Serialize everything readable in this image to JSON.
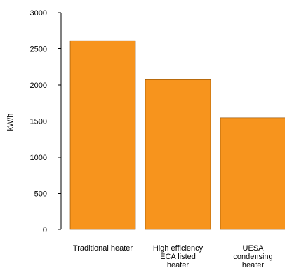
{
  "chart_data": {
    "type": "bar",
    "categories": [
      [
        "Traditional heater"
      ],
      [
        "High efficiency",
        "ECA listed",
        "heater"
      ],
      [
        "UESA",
        "condensing",
        "heater"
      ]
    ],
    "values": [
      2610,
      2075,
      1545
    ],
    "title": "",
    "xlabel": "",
    "ylabel": "kW/h",
    "ylim": [
      0,
      3000
    ],
    "yticks": [
      0,
      500,
      1000,
      1500,
      2000,
      2500,
      3000
    ],
    "grid": false,
    "legend": "none",
    "bar_color": "#f7941d",
    "axis_color": "#000000"
  }
}
